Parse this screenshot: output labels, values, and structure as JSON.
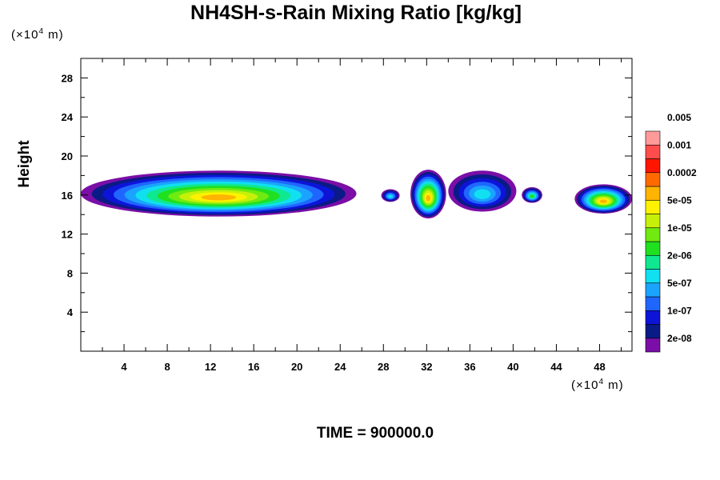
{
  "chart_data": {
    "type": "heatmap",
    "title": "NH4SH-s-Rain Mixing Ratio [kg/kg]",
    "ylabel": "Height",
    "y_unit": "(×10⁴ m)",
    "x_unit": "(×10⁴ m)",
    "footer": "TIME = 900000.0",
    "xlim": [
      0,
      51
    ],
    "ylim": [
      0,
      30
    ],
    "x_ticks": [
      "4",
      "8",
      "12",
      "16",
      "20",
      "24",
      "28",
      "32",
      "36",
      "40",
      "44",
      "48"
    ],
    "y_ticks": [
      "4",
      "8",
      "12",
      "16",
      "20",
      "24",
      "28"
    ],
    "colorbar": {
      "colors": [
        "#7a0ea6",
        "#0a1a86",
        "#0d14d8",
        "#1f66ff",
        "#1aa4ff",
        "#10e0f0",
        "#10e890",
        "#20e020",
        "#70ea10",
        "#c6f00a",
        "#fff200",
        "#ffb400",
        "#ff6a00",
        "#ff1500",
        "#ff4c4c",
        "#ff9a9a"
      ],
      "labels": [
        "2e-08",
        "1e-07",
        "5e-07",
        "2e-06",
        "1e-05",
        "5e-05",
        "0.0002",
        "0.001",
        "0.005"
      ]
    },
    "features": [
      {
        "x_range": [
          0,
          25.5
        ],
        "y_range": [
          13.8,
          18.5
        ],
        "peak": "5e-05"
      },
      {
        "x_range": [
          27.8,
          29.5
        ],
        "y_range": [
          15.3,
          16.6
        ],
        "peak": "5e-07"
      },
      {
        "x_range": [
          30.5,
          33.8
        ],
        "y_range": [
          13.6,
          18.6
        ],
        "peak": "5e-05"
      },
      {
        "x_range": [
          34,
          40.3
        ],
        "y_range": [
          14.3,
          18.5
        ],
        "peak": "5e-07"
      },
      {
        "x_range": [
          40.8,
          42.7
        ],
        "y_range": [
          15.2,
          16.8
        ],
        "peak": "2e-06"
      },
      {
        "x_range": [
          45.7,
          51
        ],
        "y_range": [
          14.1,
          17.1
        ],
        "peak": "5e-05"
      }
    ]
  }
}
